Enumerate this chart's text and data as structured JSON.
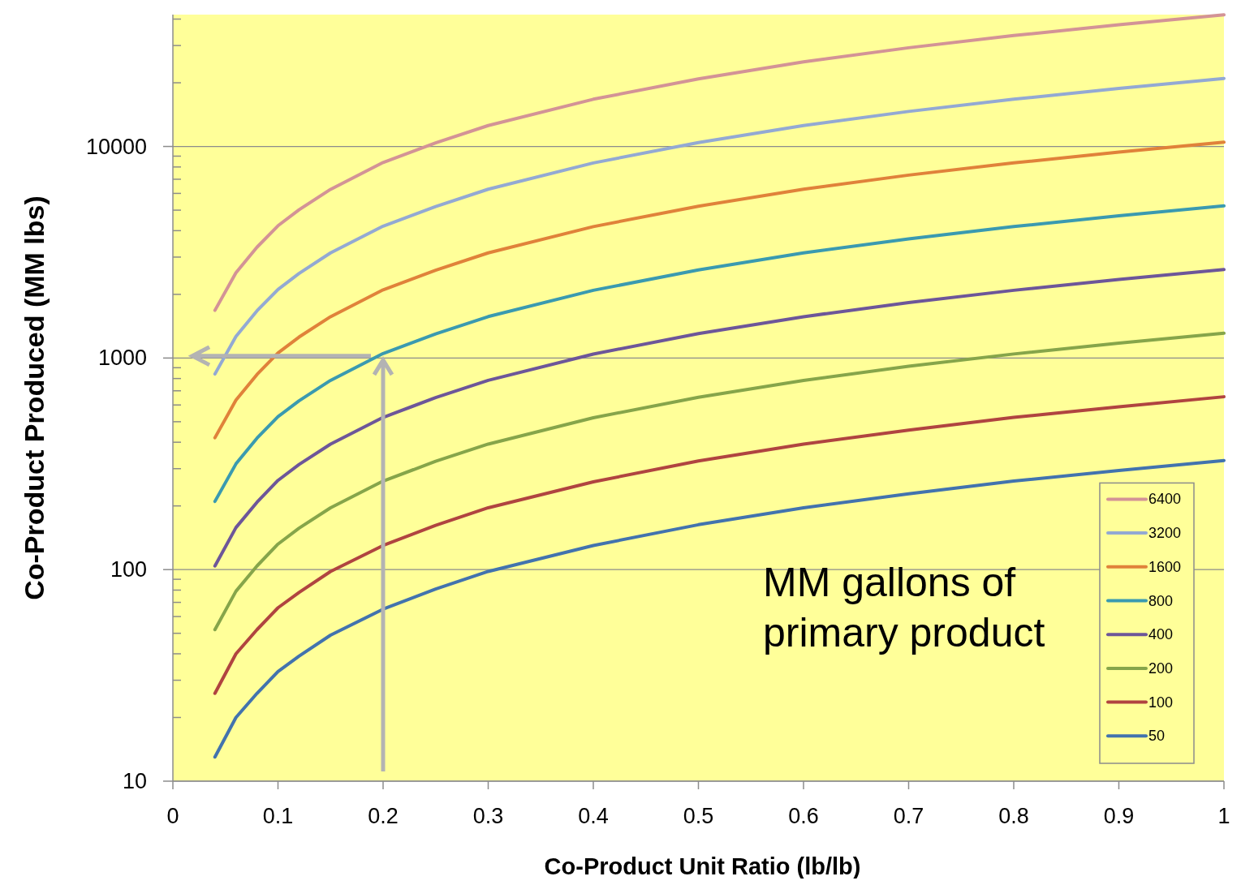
{
  "chart_data": {
    "type": "line",
    "xlabel": "Co-Product Unit Ratio (lb/lb)",
    "ylabel": "Co-Product Produced (MM lbs)",
    "x": [
      0.04,
      0.06,
      0.08,
      0.1,
      0.12,
      0.15,
      0.2,
      0.25,
      0.3,
      0.4,
      0.5,
      0.6,
      0.7,
      0.8,
      0.9,
      1.0
    ],
    "series": [
      {
        "name": "6400",
        "color": "#d39396",
        "values": [
          1680,
          2530,
          3340,
          4220,
          5020,
          6270,
          8400,
          10400,
          12560,
          16720,
          20880,
          25120,
          29280,
          33440,
          37600,
          41900
        ]
      },
      {
        "name": "3200",
        "color": "#93a9d3",
        "values": [
          840,
          1264,
          1672,
          2110,
          2510,
          3140,
          4200,
          5200,
          6280,
          8360,
          10440,
          12560,
          14640,
          16720,
          18800,
          20960
        ]
      },
      {
        "name": "1600",
        "color": "#e0823a",
        "values": [
          420,
          632,
          836,
          1056,
          1256,
          1568,
          2100,
          2600,
          3140,
          4180,
          5220,
          6280,
          7320,
          8360,
          9400,
          10480
        ]
      },
      {
        "name": "800",
        "color": "#3a9ab0",
        "values": [
          210,
          316,
          418,
          528,
          628,
          784,
          1050,
          1300,
          1570,
          2090,
          2610,
          3140,
          3660,
          4180,
          4700,
          5240
        ]
      },
      {
        "name": "400",
        "color": "#6d5699",
        "values": [
          104,
          158,
          208,
          264,
          314,
          392,
          524,
          650,
          784,
          1044,
          1304,
          1568,
          1830,
          2090,
          2350,
          2620
        ]
      },
      {
        "name": "200",
        "color": "#86a54a",
        "values": [
          52,
          79,
          104,
          132,
          157,
          196,
          262,
          325,
          392,
          522,
          652,
          784,
          915,
          1045,
          1175,
          1310
        ]
      },
      {
        "name": "100",
        "color": "#b04440",
        "values": [
          26,
          40,
          52,
          66,
          78,
          98,
          130,
          162,
          196,
          260,
          326,
          392,
          456,
          524,
          588,
          656
        ]
      },
      {
        "name": "50",
        "color": "#4273ae",
        "values": [
          13,
          20,
          26,
          33,
          39,
          49,
          65,
          81,
          98,
          130,
          163,
          196,
          228,
          262,
          294,
          328
        ]
      }
    ],
    "xlim": [
      0,
      1
    ],
    "xticks": [
      0,
      0.1,
      0.2,
      0.3,
      0.4,
      0.5,
      0.6,
      0.7,
      0.8,
      0.9,
      1
    ],
    "ylim": [
      10,
      42000
    ],
    "log": true,
    "yticks": [
      10,
      {
        "value": 20,
        "label": null
      },
      {
        "value": 30,
        "label": null
      },
      {
        "value": 40,
        "label": null
      },
      {
        "value": 50,
        "label": null
      },
      {
        "value": 60,
        "label": null
      },
      {
        "value": 70,
        "label": null
      },
      {
        "value": 80,
        "label": null
      },
      {
        "value": 90,
        "label": null
      },
      100,
      {
        "value": 200,
        "label": null
      },
      {
        "value": 300,
        "label": null
      },
      {
        "value": 400,
        "label": null
      },
      {
        "value": 500,
        "label": null
      },
      {
        "value": 600,
        "label": null
      },
      {
        "value": 700,
        "label": null
      },
      {
        "value": 800,
        "label": null
      },
      {
        "value": 900,
        "label": null
      },
      1000,
      {
        "value": 2000,
        "label": null
      },
      {
        "value": 3000,
        "label": null
      },
      {
        "value": 4000,
        "label": null
      },
      {
        "value": 5000,
        "label": null
      },
      {
        "value": 6000,
        "label": null
      },
      {
        "value": 7000,
        "label": null
      },
      {
        "value": 8000,
        "label": null
      },
      {
        "value": 9000,
        "label": null
      },
      10000,
      {
        "value": 20000,
        "label": null
      },
      {
        "value": 30000,
        "label": null
      },
      {
        "value": 40000,
        "label": null
      }
    ],
    "grid": "y",
    "legend": "bottom right",
    "marker": "none",
    "line_style": "solid",
    "annotations": [
      "MM gallons of primary product"
    ]
  }
}
